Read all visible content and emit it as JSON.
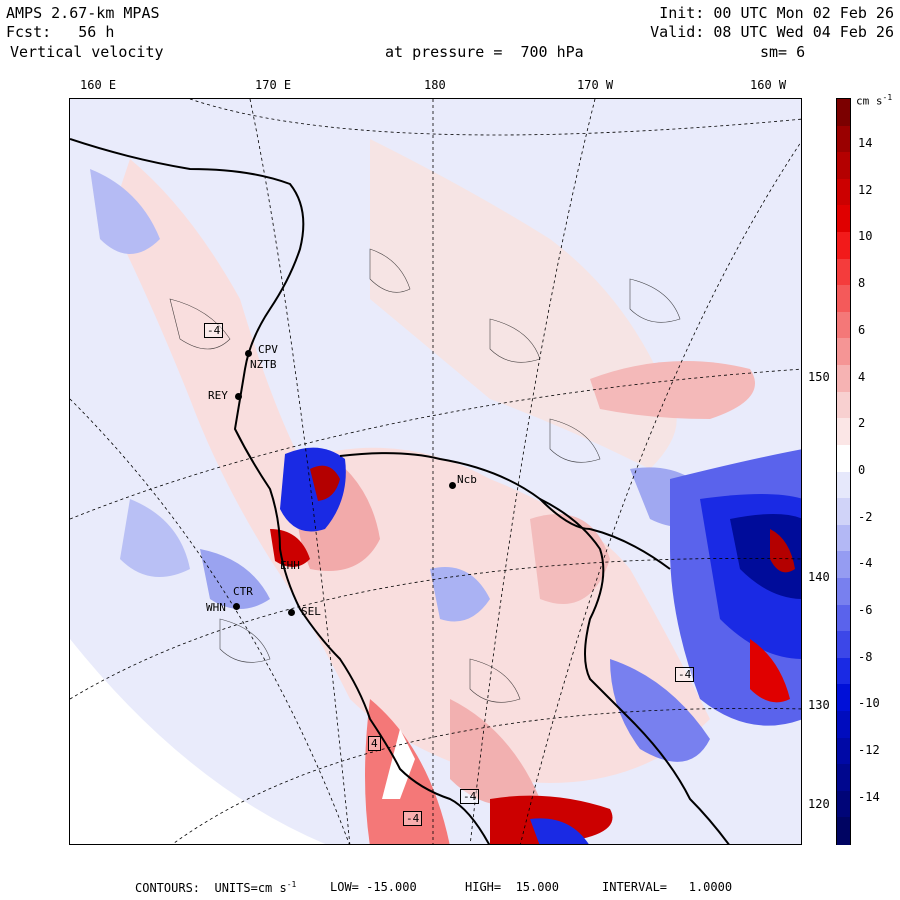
{
  "header": {
    "model": "AMPS 2.67-km MPAS",
    "fcst_label": "Fcst:",
    "fcst_value": "56 h",
    "field": "Vertical velocity",
    "init": "Init: 00 UTC Mon 02 Feb 26",
    "valid": "Valid: 08 UTC Wed 04 Feb 26",
    "level": "at pressure =  700 hPa",
    "smoothing": "sm= 6"
  },
  "longitude_labels": [
    "160 E",
    "170 E",
    "180",
    "170 W",
    "160 W"
  ],
  "latitude_labels": [
    "150 W",
    "140 W",
    "130 W",
    "120 W"
  ],
  "stations": [
    {
      "id": "REY"
    },
    {
      "id": "CPV"
    },
    {
      "id": "NZTB"
    },
    {
      "id": "WHN"
    },
    {
      "id": "SEL"
    },
    {
      "id": "Ncb"
    },
    {
      "id": "EHH"
    },
    {
      "id": "CTR"
    }
  ],
  "contour_boxes": [
    "-4",
    "4",
    "-4",
    "-4",
    "-4"
  ],
  "colorbar": {
    "units": "cm s",
    "units_exp": "-1",
    "ticks": [
      "14",
      "12",
      "10",
      "8",
      "6",
      "4",
      "2",
      "0",
      "-2",
      "-4",
      "-6",
      "-8",
      "-10",
      "-12",
      "-14"
    ],
    "colors": [
      "#7b0000",
      "#9a0000",
      "#b40000",
      "#cc0000",
      "#e00000",
      "#f21a1a",
      "#f43c3c",
      "#f45a5a",
      "#f47878",
      "#f59595",
      "#f6b3b3",
      "#f8d0d0",
      "#fbe6e6",
      "#ffffff",
      "#e6e8fb",
      "#d0d3f8",
      "#b3b8f5",
      "#959cf2",
      "#7880ef",
      "#5a63ec",
      "#3c47e8",
      "#1a2ae4",
      "#0010d8",
      "#000cbe",
      "#0009a6",
      "#00078e",
      "#000578",
      "#000462"
    ]
  },
  "footer": {
    "contours": "CONTOURS:  UNITS=cm s",
    "units_exp": "-1",
    "low": "LOW= -15.000",
    "high": "HIGH=  15.000",
    "interval": "INTERVAL=   1.0000"
  }
}
